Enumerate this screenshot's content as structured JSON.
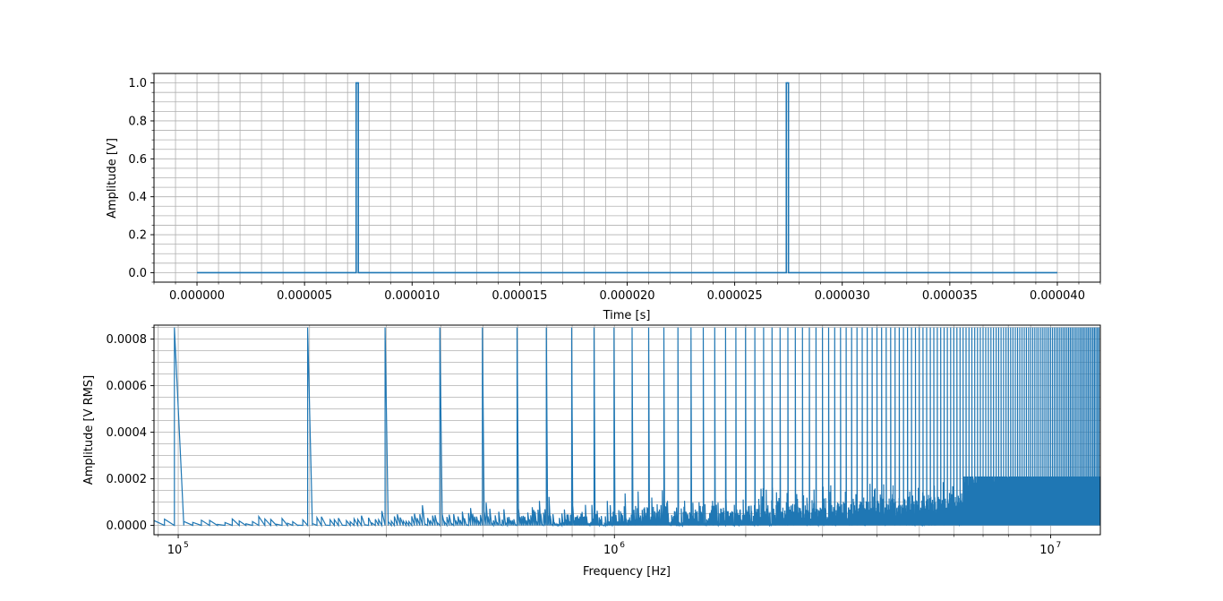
{
  "chart_data": [
    {
      "type": "line",
      "xlabel": "Time [s]",
      "ylabel": "Amplitude [V]",
      "xlim": [
        -2e-06,
        4.2e-05
      ],
      "ylim": [
        -0.05,
        1.05
      ],
      "xticks": [
        "0.000000",
        "0.000005",
        "0.000010",
        "0.000015",
        "0.000020",
        "0.000025",
        "0.000030",
        "0.000035",
        "0.000040"
      ],
      "xtick_values": [
        0,
        5e-06,
        1e-05,
        1.5e-05,
        2e-05,
        2.5e-05,
        3e-05,
        3.5e-05,
        4e-05
      ],
      "yticks": [
        "0.0",
        "0.2",
        "0.4",
        "0.6",
        "0.8",
        "1.0"
      ],
      "ytick_values": [
        0,
        0.2,
        0.4,
        0.6,
        0.8,
        1.0
      ],
      "grid": true,
      "minor_grid": true,
      "color": "#1f77b4",
      "series": [
        {
          "x": [
            0,
            7.4e-06,
            7.4e-06,
            7.5e-06,
            7.5e-06,
            2.74e-05,
            2.74e-05,
            2.75e-05,
            2.75e-05,
            4e-05
          ],
          "values": [
            0,
            0,
            1.0,
            1.0,
            0,
            0,
            1.0,
            1.0,
            0,
            0
          ]
        }
      ]
    },
    {
      "type": "line",
      "xlabel": "Frequency [Hz]",
      "ylabel": "Amplitude [V RMS]",
      "xscale": "log",
      "xlim": [
        88000,
        13000000
      ],
      "ylim": [
        -4e-05,
        0.00086
      ],
      "xticks": [
        "10^5",
        "10^6",
        "10^7"
      ],
      "xtick_values": [
        100000,
        1000000,
        10000000
      ],
      "yticks": [
        "0.0000",
        "0.0002",
        "0.0004",
        "0.0006",
        "0.0008"
      ],
      "ytick_values": [
        0,
        0.0002,
        0.0004,
        0.0006,
        0.0008
      ],
      "grid": true,
      "minor_grid": true,
      "color": "#1f77b4",
      "harmonic_spacing_hz": 100000,
      "peak_amplitude": 0.00085,
      "noise_floor_max": 0.00021,
      "series": [
        {
          "x": [
            100000,
            200000,
            300000,
            400000,
            500000,
            600000,
            700000,
            800000,
            900000,
            1000000,
            1100000,
            1200000,
            1300000,
            1500000,
            2000000,
            3000000,
            5000000,
            8000000,
            13000000
          ],
          "values": [
            0.00085,
            0.00085,
            0.00085,
            0.00085,
            0.00085,
            0.00085,
            0.00085,
            0.00085,
            0.00085,
            0.00085,
            0.00085,
            0.00085,
            0.00085,
            0.00085,
            0.00085,
            0.00085,
            0.00085,
            0.00085,
            0.00085
          ]
        }
      ]
    }
  ]
}
